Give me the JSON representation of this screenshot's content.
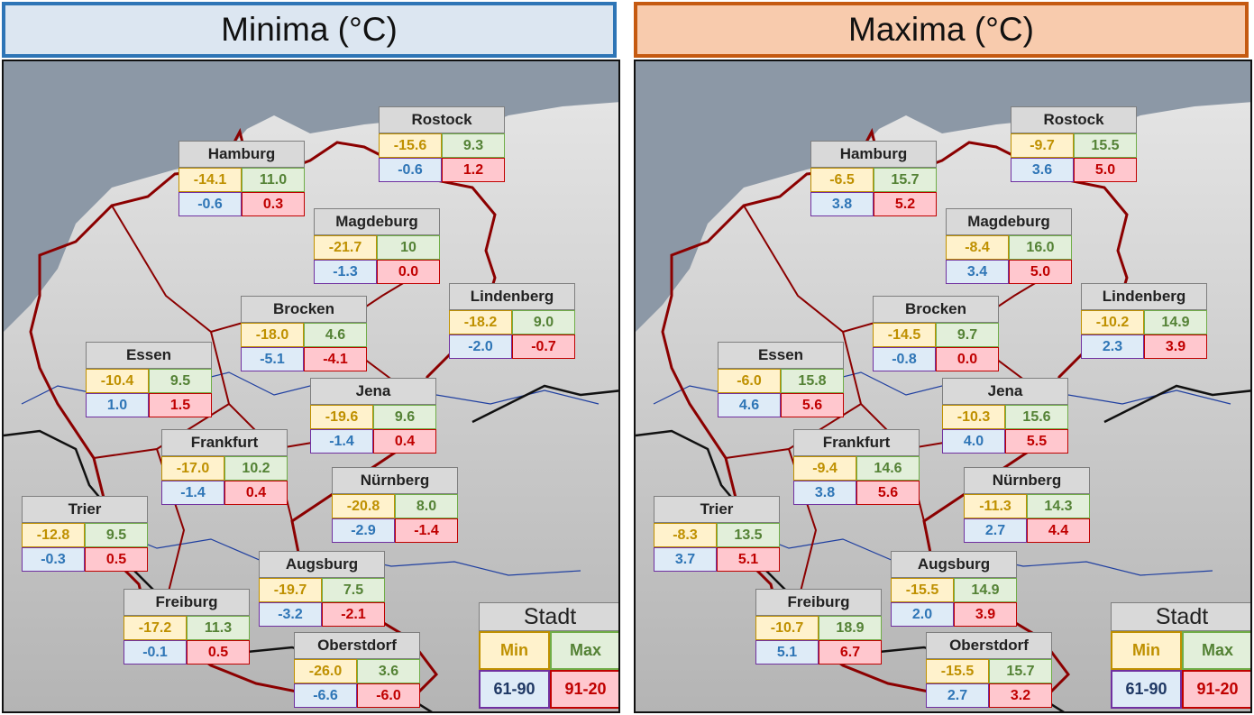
{
  "minima": {
    "title": "Minima (°C)",
    "stations": [
      {
        "name": "Rostock",
        "min": "-15.6",
        "max": "9.3",
        "clim_min": "-0.6",
        "clim_max": "1.2"
      },
      {
        "name": "Hamburg",
        "min": "-14.1",
        "max": "11.0",
        "clim_min": "-0.6",
        "clim_max": "0.3"
      },
      {
        "name": "Magdeburg",
        "min": "-21.7",
        "max": "10",
        "clim_min": "-1.3",
        "clim_max": "0.0"
      },
      {
        "name": "Lindenberg",
        "min": "-18.2",
        "max": "9.0",
        "clim_min": "-2.0",
        "clim_max": "-0.7"
      },
      {
        "name": "Brocken",
        "min": "-18.0",
        "max": "4.6",
        "clim_min": "-5.1",
        "clim_max": "-4.1"
      },
      {
        "name": "Essen",
        "min": "-10.4",
        "max": "9.5",
        "clim_min": "1.0",
        "clim_max": "1.5"
      },
      {
        "name": "Jena",
        "min": "-19.6",
        "max": "9.6",
        "clim_min": "-1.4",
        "clim_max": "0.4"
      },
      {
        "name": "Frankfurt",
        "min": "-17.0",
        "max": "10.2",
        "clim_min": "-1.4",
        "clim_max": "0.4"
      },
      {
        "name": "Nürnberg",
        "min": "-20.8",
        "max": "8.0",
        "clim_min": "-2.9",
        "clim_max": "-1.4"
      },
      {
        "name": "Trier",
        "min": "-12.8",
        "max": "9.5",
        "clim_min": "-0.3",
        "clim_max": "0.5"
      },
      {
        "name": "Augsburg",
        "min": "-19.7",
        "max": "7.5",
        "clim_min": "-3.2",
        "clim_max": "-2.1"
      },
      {
        "name": "Freiburg",
        "min": "-17.2",
        "max": "11.3",
        "clim_min": "-0.1",
        "clim_max": "0.5"
      },
      {
        "name": "Oberstdorf",
        "min": "-26.0",
        "max": "3.6",
        "clim_min": "-6.6",
        "clim_max": "-6.0"
      }
    ]
  },
  "maxima": {
    "title": "Maxima (°C)",
    "stations": [
      {
        "name": "Rostock",
        "min": "-9.7",
        "max": "15.5",
        "clim_min": "3.6",
        "clim_max": "5.0"
      },
      {
        "name": "Hamburg",
        "min": "-6.5",
        "max": "15.7",
        "clim_min": "3.8",
        "clim_max": "5.2"
      },
      {
        "name": "Magdeburg",
        "min": "-8.4",
        "max": "16.0",
        "clim_min": "3.4",
        "clim_max": "5.0"
      },
      {
        "name": "Lindenberg",
        "min": "-10.2",
        "max": "14.9",
        "clim_min": "2.3",
        "clim_max": "3.9"
      },
      {
        "name": "Brocken",
        "min": "-14.5",
        "max": "9.7",
        "clim_min": "-0.8",
        "clim_max": "0.0"
      },
      {
        "name": "Essen",
        "min": "-6.0",
        "max": "15.8",
        "clim_min": "4.6",
        "clim_max": "5.6"
      },
      {
        "name": "Jena",
        "min": "-10.3",
        "max": "15.6",
        "clim_min": "4.0",
        "clim_max": "5.5"
      },
      {
        "name": "Frankfurt",
        "min": "-9.4",
        "max": "14.6",
        "clim_min": "3.8",
        "clim_max": "5.6"
      },
      {
        "name": "Nürnberg",
        "min": "-11.3",
        "max": "14.3",
        "clim_min": "2.7",
        "clim_max": "4.4"
      },
      {
        "name": "Trier",
        "min": "-8.3",
        "max": "13.5",
        "clim_min": "3.7",
        "clim_max": "5.1"
      },
      {
        "name": "Augsburg",
        "min": "-15.5",
        "max": "14.9",
        "clim_min": "2.0",
        "clim_max": "3.9"
      },
      {
        "name": "Freiburg",
        "min": "-10.7",
        "max": "18.9",
        "clim_min": "5.1",
        "clim_max": "6.7"
      },
      {
        "name": "Oberstdorf",
        "min": "-15.5",
        "max": "15.7",
        "clim_min": "2.7",
        "clim_max": "3.2"
      }
    ]
  },
  "legend": {
    "title": "Stadt",
    "min_label": "Min",
    "max_label": "Max",
    "clim_min_label": "61-90",
    "clim_max_label": "91-20"
  },
  "colors": {
    "minima_header_border": "#2e75b6",
    "minima_header_bg": "#dce6f1",
    "maxima_header_border": "#c55a11",
    "maxima_header_bg": "#f8cbad",
    "border_line": "#8b0000",
    "sea": "#8c98a6"
  }
}
